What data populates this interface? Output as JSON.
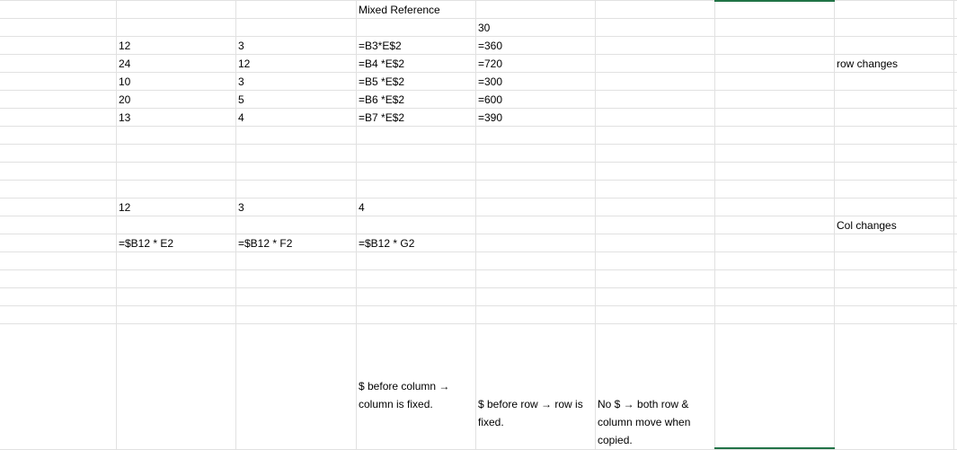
{
  "sheet": {
    "header_title": "Mixed Reference",
    "e2_value": "30",
    "rows_block1": [
      {
        "b": "12",
        "c": "3",
        "d": "=B3*E$2",
        "e": "=360"
      },
      {
        "b": "24",
        "c": "12",
        "d": "=B4 *E$2",
        "e": "=720"
      },
      {
        "b": "10",
        "c": "3",
        "d": "=B5 *E$2",
        "e": "=300"
      },
      {
        "b": "20",
        "c": "5",
        "d": "=B6 *E$2",
        "e": "=600"
      },
      {
        "b": "13",
        "c": "4",
        "d": "=B7 *E$2",
        "e": "=390"
      }
    ],
    "row_changes_label": "row changes",
    "row12": {
      "b": "12",
      "c": "3",
      "d": "4"
    },
    "col_changes_label": "Col changes",
    "row14": {
      "b": "=$B12 * E2",
      "c": "=$B12 * F2",
      "d": "=$B12 * G2"
    },
    "notes": {
      "dollar_before_column": "$ before column → column is fixed.",
      "dollar_before_row": "$ before row → row is fixed.",
      "no_dollar": "No $ → both row & column move when copied."
    },
    "colors": {
      "gridline": "#e1e1e1",
      "selection": "#217346"
    }
  }
}
